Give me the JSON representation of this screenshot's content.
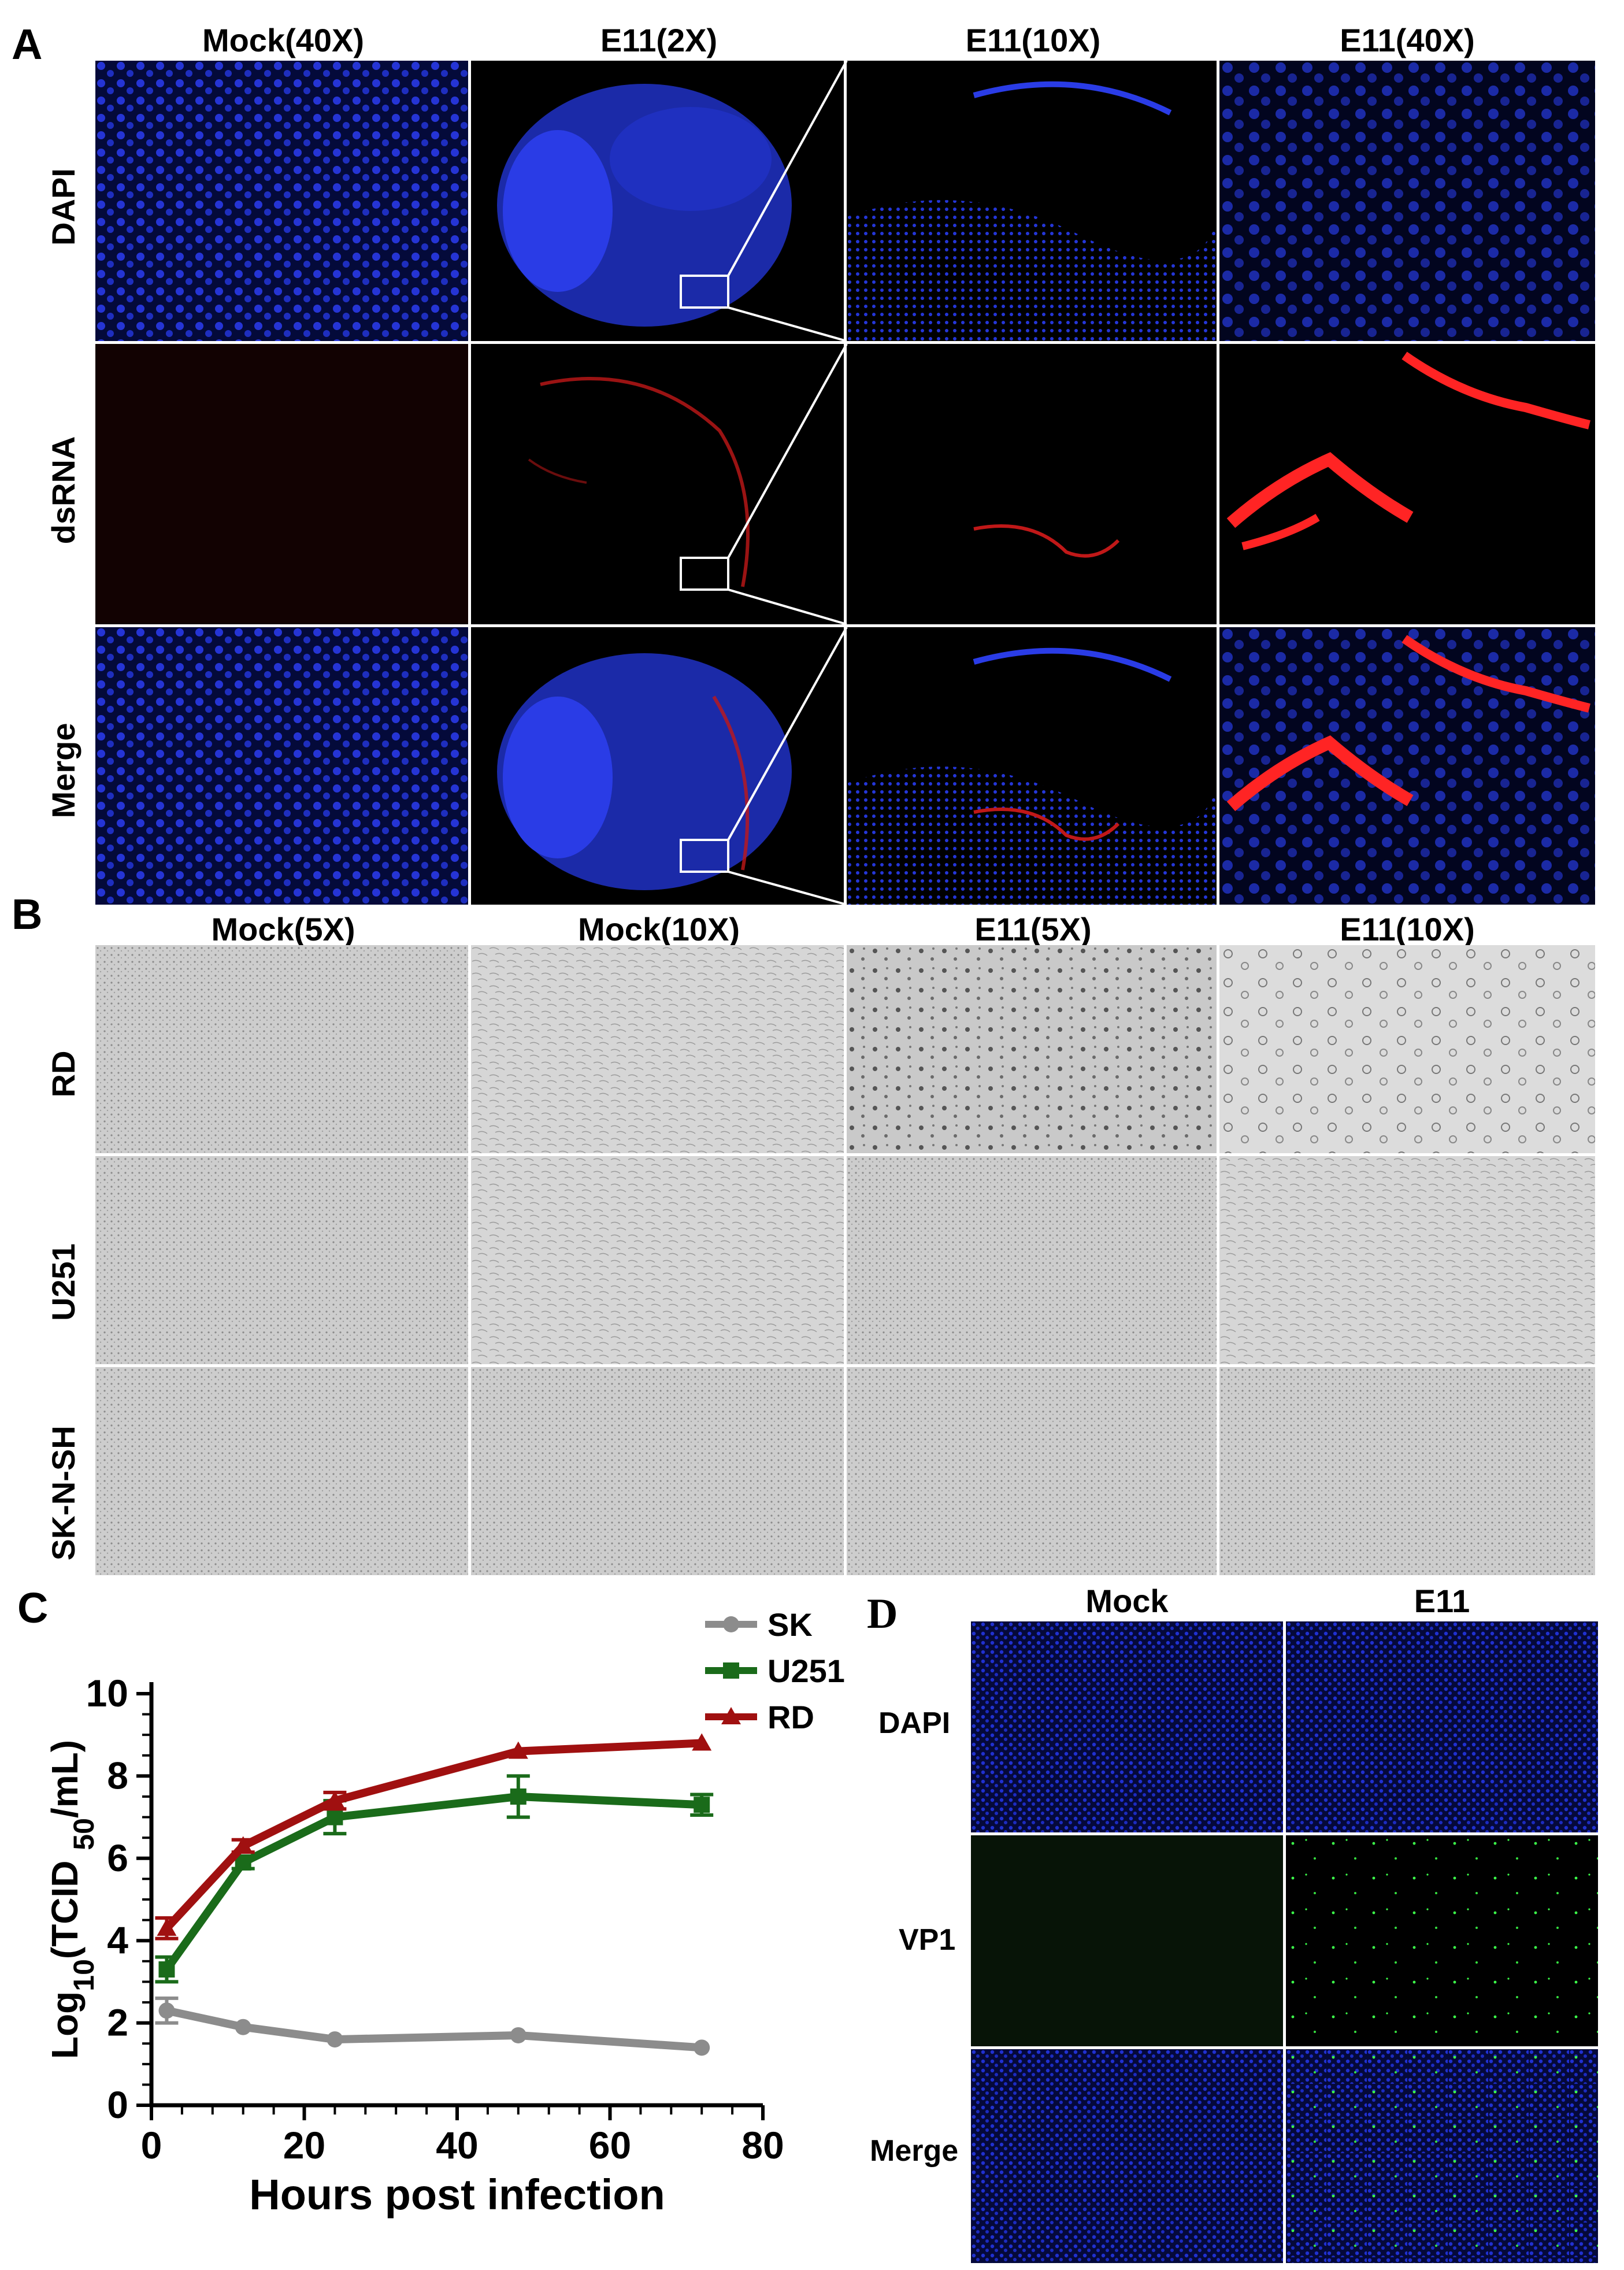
{
  "figure": {
    "panelA": {
      "letter": "A",
      "columns": [
        "Mock(40X)",
        "E11(2X)",
        "E11(10X)",
        "E11(40X)"
      ],
      "rows": [
        "DAPI",
        "dsRNA",
        "Merge"
      ]
    },
    "panelB": {
      "letter": "B",
      "columns": [
        "Mock(5X)",
        "Mock(10X)",
        "E11(5X)",
        "E11(10X)"
      ],
      "rows": [
        "RD",
        "U251",
        "SK-N-SH"
      ]
    },
    "panelC": {
      "letter": "C"
    },
    "panelD": {
      "letter": "D",
      "columns": [
        "Mock",
        "E11"
      ],
      "rows": [
        "DAPI",
        "VP1",
        "Merge"
      ]
    },
    "colors": {
      "dapi": "#1b2fd6",
      "dsrna": "#ff2424",
      "vp1": "#3cff4a",
      "brightfield": "#cfcfcf"
    }
  },
  "chart_data": {
    "type": "line",
    "xlabel": "Hours post infection",
    "ylabel": "Log10(TCID 50/mL)",
    "ylabel_parts": {
      "base": "Log",
      "sub": "10",
      "mid": "(TCID ",
      "sub2": "50",
      "tail": "/mL)"
    },
    "xlim": [
      0,
      80
    ],
    "ylim": [
      0,
      10
    ],
    "xticks": [
      "0",
      "20",
      "40",
      "60",
      "80"
    ],
    "yticks": [
      "0",
      "2",
      "4",
      "6",
      "8",
      "10"
    ],
    "x": [
      2,
      12,
      24,
      48,
      72
    ],
    "series": [
      {
        "name": "SK",
        "color": "#8c8c8c",
        "marker": "circle",
        "values": [
          2.3,
          1.9,
          1.6,
          1.7,
          1.4
        ],
        "errors": [
          0.3,
          0.05,
          0.05,
          0.05,
          0.05
        ]
      },
      {
        "name": "U251",
        "color": "#1a6b1a",
        "marker": "square",
        "values": [
          3.3,
          5.9,
          7.0,
          7.5,
          7.3
        ],
        "errors": [
          0.3,
          0.15,
          0.4,
          0.5,
          0.25
        ]
      },
      {
        "name": "RD",
        "color": "#a01010",
        "marker": "triangle",
        "values": [
          4.3,
          6.3,
          7.4,
          8.6,
          8.8
        ],
        "errors": [
          0.25,
          0.15,
          0.2,
          0.05,
          0.05
        ]
      }
    ],
    "legend": "top-right"
  }
}
